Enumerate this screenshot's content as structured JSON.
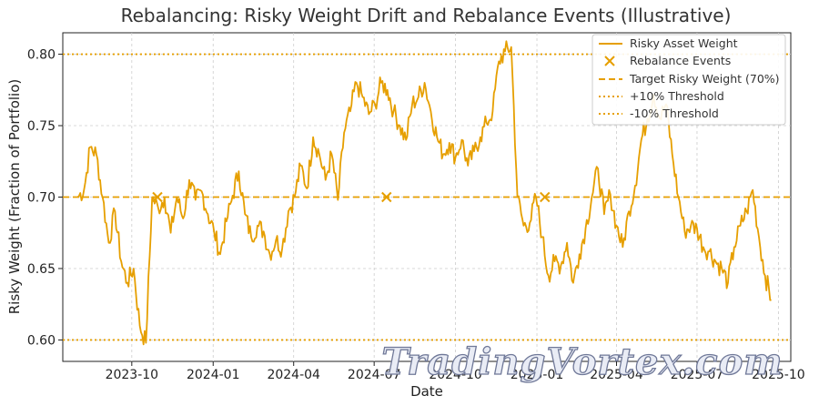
{
  "chart_data": {
    "type": "line",
    "title": "Rebalancing: Risky Weight Drift and Rebalance Events (Illustrative)",
    "xlabel": "Date",
    "ylabel": "Risky Weight (Fraction of Portfolio)",
    "xlim": [
      "2023-07-15",
      "2025-10-15"
    ],
    "ylim": [
      0.585,
      0.815
    ],
    "x_ticks": [
      "2023-10-01",
      "2024-01-01",
      "2024-04-01",
      "2024-07-01",
      "2024-10-01",
      "2025-01-01",
      "2025-04-01",
      "2025-07-01",
      "2025-10-01"
    ],
    "x_tick_labels": [
      "2023-10",
      "2024-01",
      "2024-04",
      "2024-07",
      "2024-10",
      "2025-01",
      "2025-04",
      "2025-07",
      "2025-10"
    ],
    "y_ticks": [
      0.6,
      0.65,
      0.7,
      0.75,
      0.8
    ],
    "y_tick_labels": [
      "0.60",
      "0.65",
      "0.70",
      "0.75",
      "0.80"
    ],
    "grid": true,
    "legend_position": "top-right",
    "colors": {
      "series": "#e69f00",
      "background": "#ffffff",
      "grid": "#cccccc"
    },
    "reference_lines": [
      {
        "name": "Target Risky Weight (70%)",
        "value": 0.7,
        "style": "dashed"
      },
      {
        "name": "+10% Threshold",
        "value": 0.8,
        "style": "dotted"
      },
      {
        "name": "-10% Threshold",
        "value": 0.6,
        "style": "dotted"
      }
    ],
    "series": [
      {
        "name": "Risky Asset Weight",
        "x": [
          "2023-08-01",
          "2023-08-08",
          "2023-08-15",
          "2023-08-22",
          "2023-08-29",
          "2023-09-05",
          "2023-09-12",
          "2023-09-19",
          "2023-09-26",
          "2023-10-03",
          "2023-10-10",
          "2023-10-17",
          "2023-10-24",
          "2023-10-31",
          "2023-11-07",
          "2023-11-14",
          "2023-11-21",
          "2023-11-28",
          "2023-12-05",
          "2023-12-12",
          "2023-12-19",
          "2023-12-26",
          "2024-01-02",
          "2024-01-09",
          "2024-01-16",
          "2024-01-23",
          "2024-01-30",
          "2024-02-06",
          "2024-02-13",
          "2024-02-20",
          "2024-02-27",
          "2024-03-05",
          "2024-03-12",
          "2024-03-19",
          "2024-03-26",
          "2024-04-02",
          "2024-04-09",
          "2024-04-16",
          "2024-04-23",
          "2024-04-30",
          "2024-05-07",
          "2024-05-14",
          "2024-05-21",
          "2024-05-28",
          "2024-06-04",
          "2024-06-11",
          "2024-06-18",
          "2024-06-25",
          "2024-07-02",
          "2024-07-09",
          "2024-07-16",
          "2024-07-23",
          "2024-07-30",
          "2024-08-06",
          "2024-08-13",
          "2024-08-20",
          "2024-08-27",
          "2024-09-03",
          "2024-09-10",
          "2024-09-17",
          "2024-09-24",
          "2024-10-01",
          "2024-10-08",
          "2024-10-15",
          "2024-10-22",
          "2024-10-29",
          "2024-11-05",
          "2024-11-12",
          "2024-11-19",
          "2024-11-26",
          "2024-12-03",
          "2024-12-10",
          "2024-12-17",
          "2024-12-24",
          "2024-12-31",
          "2025-01-07",
          "2025-01-14",
          "2025-01-21",
          "2025-01-28",
          "2025-02-04",
          "2025-02-11",
          "2025-02-18",
          "2025-02-25",
          "2025-03-04",
          "2025-03-11",
          "2025-03-18",
          "2025-03-25",
          "2025-04-01",
          "2025-04-08",
          "2025-04-15",
          "2025-04-22",
          "2025-04-29",
          "2025-05-06",
          "2025-05-13",
          "2025-05-20",
          "2025-05-27",
          "2025-06-03",
          "2025-06-10",
          "2025-06-17",
          "2025-06-24",
          "2025-07-01",
          "2025-07-08",
          "2025-07-15",
          "2025-07-22",
          "2025-07-29",
          "2025-08-05",
          "2025-08-12",
          "2025-08-19",
          "2025-08-26",
          "2025-09-02",
          "2025-09-09",
          "2025-09-16",
          "2025-09-23"
        ],
        "values": [
          0.7,
          0.705,
          0.735,
          0.73,
          0.7,
          0.668,
          0.69,
          0.655,
          0.64,
          0.65,
          0.61,
          0.598,
          0.7,
          0.692,
          0.7,
          0.675,
          0.7,
          0.685,
          0.712,
          0.698,
          0.704,
          0.688,
          0.676,
          0.66,
          0.683,
          0.701,
          0.718,
          0.688,
          0.672,
          0.68,
          0.676,
          0.66,
          0.67,
          0.664,
          0.69,
          0.7,
          0.722,
          0.706,
          0.742,
          0.73,
          0.712,
          0.73,
          0.698,
          0.745,
          0.76,
          0.78,
          0.77,
          0.758,
          0.765,
          0.78,
          0.775,
          0.76,
          0.75,
          0.74,
          0.765,
          0.77,
          0.78,
          0.76,
          0.742,
          0.73,
          0.738,
          0.728,
          0.74,
          0.722,
          0.732,
          0.742,
          0.752,
          0.76,
          0.795,
          0.802,
          0.805,
          0.7,
          0.68,
          0.682,
          0.7,
          0.672,
          0.645,
          0.655,
          0.652,
          0.668,
          0.64,
          0.66,
          0.678,
          0.7,
          0.72,
          0.688,
          0.702,
          0.68,
          0.665,
          0.69,
          0.708,
          0.74,
          0.755,
          0.772,
          0.755,
          0.765,
          0.73,
          0.7,
          0.676,
          0.68,
          0.678,
          0.665,
          0.662,
          0.655,
          0.65,
          0.64,
          0.665,
          0.68,
          0.69,
          0.705,
          0.672,
          0.645,
          0.628
        ],
        "color": "#e69f00"
      },
      {
        "name": "Rebalance Events",
        "x": [
          "2023-10-30",
          "2024-07-15",
          "2025-01-10"
        ],
        "values": [
          0.7,
          0.7,
          0.7
        ],
        "marker": "x"
      }
    ],
    "legend": [
      "Risky Asset Weight",
      "Rebalance Events",
      "Target Risky Weight (70%)",
      "+10% Threshold",
      "-10% Threshold"
    ]
  },
  "watermark": {
    "text": "TradingVortex.com"
  }
}
